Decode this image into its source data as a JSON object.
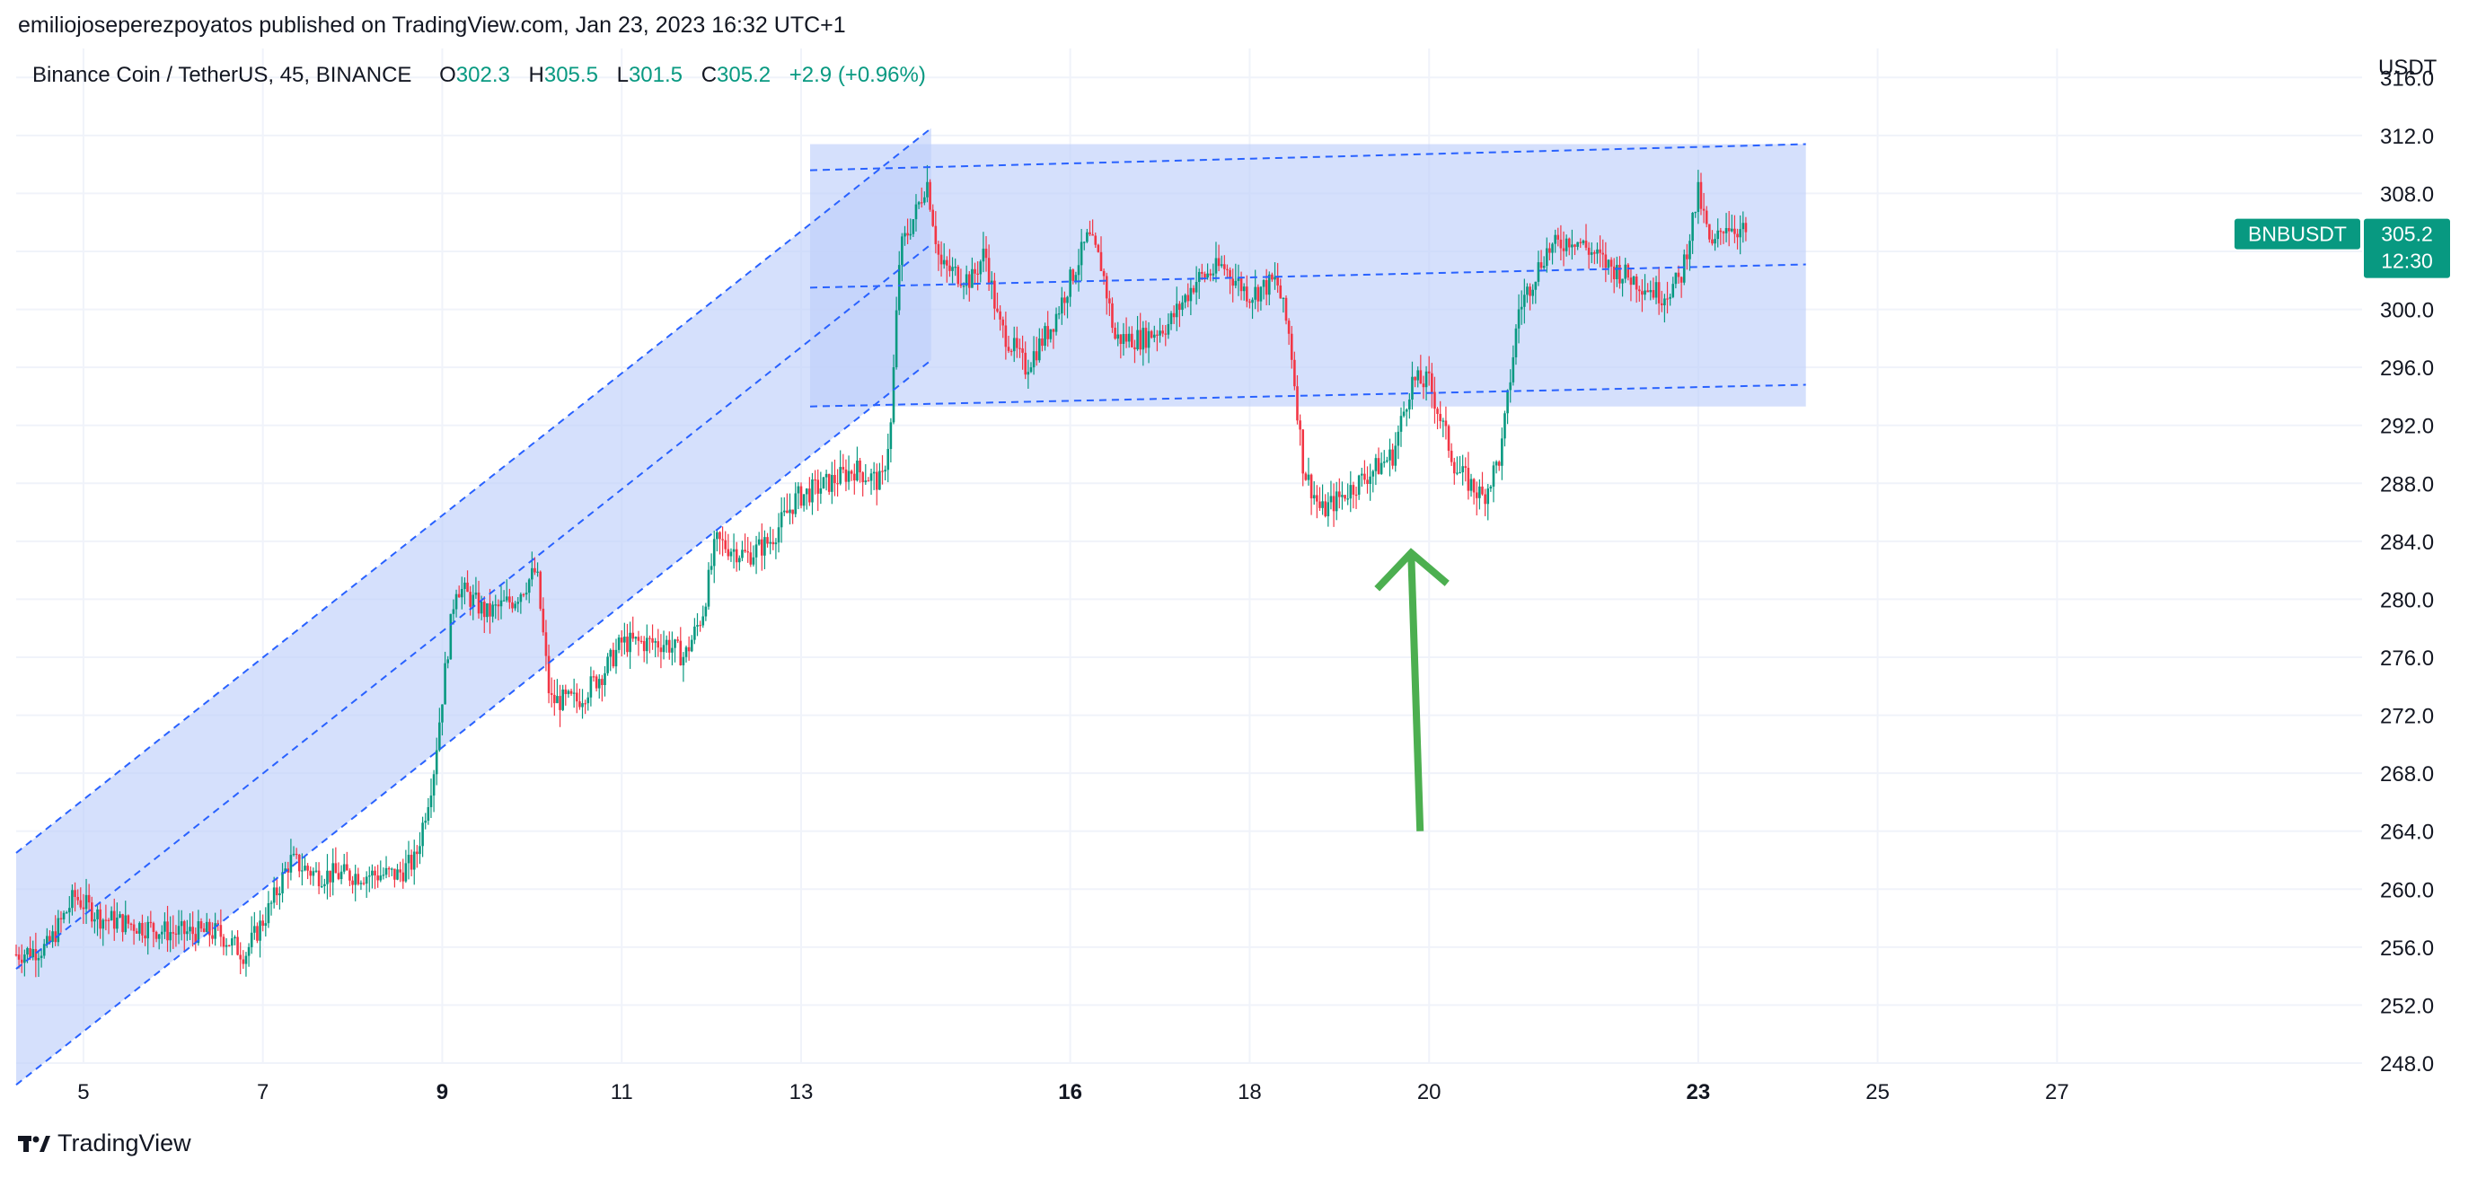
{
  "header": {
    "publisher_line": "emiliojoseperezpoyatos published on TradingView.com, Jan 23, 2023 16:32 UTC+1"
  },
  "legend": {
    "symbol": "Binance Coin / TetherUS, 45, BINANCE",
    "open_label": "O",
    "open": "302.3",
    "high_label": "H",
    "high": "305.5",
    "low_label": "L",
    "low": "301.5",
    "close_label": "C",
    "close": "305.2",
    "change": "+2.9 (+0.96%)"
  },
  "price_axis": {
    "currency": "USDT"
  },
  "price_tag": {
    "ticker": "BNBUSDT",
    "price": "305.2",
    "countdown": "12:30"
  },
  "footer": {
    "brand": "TradingView"
  },
  "colors": {
    "up": "#089981",
    "down": "#f23645",
    "channel_fill": "#bed0fb",
    "channel_line": "#2962ff",
    "arrow": "#4caf50",
    "tag": "#089981"
  },
  "icons": {
    "brand_logo": "tradingview-logo-icon"
  },
  "chart_data": {
    "type": "candlestick",
    "symbol": "BNBUSDT",
    "timeframe": "45",
    "exchange": "BINANCE",
    "ylim": [
      248,
      318
    ],
    "ytick_values": [
      248,
      252,
      256,
      260,
      264,
      268,
      272,
      276,
      280,
      284,
      288,
      292,
      296,
      300,
      304,
      308,
      312,
      316
    ],
    "ytick_labels": [
      "248.0",
      "252.0",
      "256.0",
      "260.0",
      "264.0",
      "268.0",
      "272.0",
      "276.0",
      "280.0",
      "284.0",
      "288.0",
      "292.0",
      "296.0",
      "300.0",
      "304.0",
      "308.0",
      "312.0",
      "316.0"
    ],
    "x_axis": "date (January 2023)",
    "xlim": [
      4.25,
      30.4
    ],
    "xticks": [
      {
        "x": 5,
        "label": "5",
        "bold": false
      },
      {
        "x": 7,
        "label": "7",
        "bold": false
      },
      {
        "x": 9,
        "label": "9",
        "bold": true
      },
      {
        "x": 11,
        "label": "11",
        "bold": false
      },
      {
        "x": 13,
        "label": "13",
        "bold": false
      },
      {
        "x": 16,
        "label": "16",
        "bold": true
      },
      {
        "x": 18,
        "label": "18",
        "bold": false
      },
      {
        "x": 20,
        "label": "20",
        "bold": false
      },
      {
        "x": 23,
        "label": "23",
        "bold": true
      },
      {
        "x": 25,
        "label": "25",
        "bold": false
      },
      {
        "x": 27,
        "label": "27",
        "bold": false
      }
    ],
    "price_anchors": [
      [
        4.25,
        255.5
      ],
      [
        4.6,
        256
      ],
      [
        4.9,
        259.5
      ],
      [
        5.2,
        258
      ],
      [
        5.6,
        257.5
      ],
      [
        6.0,
        257
      ],
      [
        6.5,
        257
      ],
      [
        6.8,
        255.5
      ],
      [
        7.1,
        259
      ],
      [
        7.3,
        262
      ],
      [
        7.6,
        261
      ],
      [
        8.0,
        261
      ],
      [
        8.5,
        261
      ],
      [
        8.7,
        262
      ],
      [
        8.9,
        268
      ],
      [
        9.05,
        276
      ],
      [
        9.15,
        281
      ],
      [
        9.5,
        279
      ],
      [
        9.8,
        280
      ],
      [
        10.05,
        282
      ],
      [
        10.2,
        273
      ],
      [
        10.5,
        273
      ],
      [
        10.8,
        275
      ],
      [
        11.0,
        277
      ],
      [
        11.5,
        277
      ],
      [
        11.7,
        276
      ],
      [
        11.9,
        279
      ],
      [
        12.05,
        284
      ],
      [
        12.4,
        283
      ],
      [
        12.65,
        284
      ],
      [
        12.95,
        287
      ],
      [
        13.3,
        288
      ],
      [
        13.6,
        289
      ],
      [
        13.9,
        288
      ],
      [
        14.0,
        292
      ],
      [
        14.1,
        304
      ],
      [
        14.3,
        307
      ],
      [
        14.4,
        309
      ],
      [
        14.55,
        303
      ],
      [
        14.9,
        302
      ],
      [
        15.05,
        304
      ],
      [
        15.2,
        299
      ],
      [
        15.5,
        296
      ],
      [
        15.8,
        299
      ],
      [
        16.0,
        302
      ],
      [
        16.2,
        305
      ],
      [
        16.35,
        303
      ],
      [
        16.5,
        298
      ],
      [
        16.8,
        298
      ],
      [
        17.1,
        299
      ],
      [
        17.4,
        302
      ],
      [
        17.7,
        303
      ],
      [
        18.0,
        301
      ],
      [
        18.3,
        302
      ],
      [
        18.45,
        298
      ],
      [
        18.6,
        289
      ],
      [
        18.8,
        286
      ],
      [
        19.0,
        287
      ],
      [
        19.4,
        289
      ],
      [
        19.6,
        290
      ],
      [
        19.8,
        295
      ],
      [
        20.0,
        295
      ],
      [
        20.3,
        289
      ],
      [
        20.6,
        287
      ],
      [
        20.8,
        290
      ],
      [
        21.0,
        300
      ],
      [
        21.3,
        304
      ],
      [
        21.6,
        305
      ],
      [
        22.0,
        303
      ],
      [
        22.3,
        302
      ],
      [
        22.6,
        301
      ],
      [
        22.8,
        302
      ],
      [
        23.0,
        308
      ],
      [
        23.15,
        304
      ],
      [
        23.3,
        306
      ],
      [
        23.55,
        305.2
      ]
    ],
    "annotations": {
      "rising_channel": {
        "upper_line": [
          [
            4.25,
            262.5
          ],
          [
            14.45,
            312.5
          ]
        ],
        "lower_line": [
          [
            4.25,
            246.5
          ],
          [
            14.45,
            296.5
          ]
        ],
        "middle_line": [
          [
            4.25,
            254.5
          ],
          [
            14.45,
            304.5
          ]
        ]
      },
      "range_box": {
        "x": [
          13.1,
          24.2
        ],
        "upper_line": [
          [
            13.1,
            309.6
          ],
          [
            24.2,
            311.4
          ]
        ],
        "middle_line": [
          [
            13.1,
            301.5
          ],
          [
            24.2,
            303.1
          ]
        ],
        "lower_line": [
          [
            13.1,
            293.3
          ],
          [
            24.2,
            294.8
          ]
        ]
      },
      "arrow": {
        "tip": [
          19.8,
          283.2
        ],
        "tail": [
          19.9,
          264
        ]
      }
    }
  }
}
